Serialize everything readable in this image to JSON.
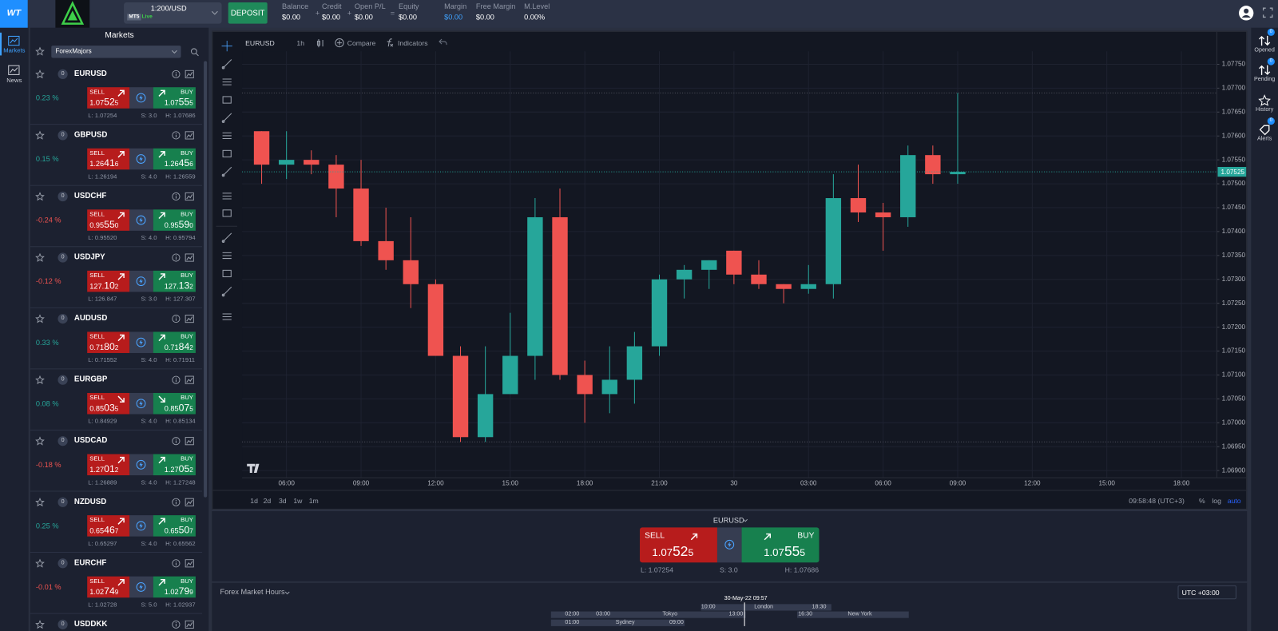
{
  "header": {
    "logo": "WT",
    "account": {
      "leverage": "1:200/USD",
      "platform": "MT5",
      "mode": "Live"
    },
    "deposit": "DEPOSIT",
    "stats": [
      {
        "label": "Balance",
        "value": "$0.00"
      },
      {
        "label": "Credit",
        "value": "$0.00"
      },
      {
        "label": "Open P/L",
        "value": "$0.00"
      },
      {
        "label": "Equity",
        "value": "$0.00"
      },
      {
        "label": "Margin",
        "value": "$0.00"
      },
      {
        "label": "Free Margin",
        "value": "$0.00"
      },
      {
        "label": "M.Level",
        "value": "0.00%"
      }
    ],
    "operators": [
      "+",
      "+",
      "="
    ]
  },
  "nav": {
    "items": [
      "Markets",
      "News"
    ]
  },
  "markets": {
    "title": "Markets",
    "group": "ForexMajors",
    "rows": [
      {
        "symbol": "EURUSD",
        "count": "0",
        "change": "0.23 %",
        "arrow": "up",
        "sell_label": "SELL",
        "sell": [
          "1.07",
          "52",
          "5"
        ],
        "buy_label": "BUY",
        "buy": [
          "1.07",
          "55",
          "5"
        ],
        "low": "L: 1.07254",
        "spread": "S: 3.0",
        "high": "H: 1.07686"
      },
      {
        "symbol": "GBPUSD",
        "count": "0",
        "change": "0.15 %",
        "arrow": "up",
        "sell_label": "SELL",
        "sell": [
          "1.26",
          "41",
          "6"
        ],
        "buy_label": "BUY",
        "buy": [
          "1.26",
          "45",
          "6"
        ],
        "low": "L: 1.26194",
        "spread": "S: 4.0",
        "high": "H: 1.26559"
      },
      {
        "symbol": "USDCHF",
        "count": "0",
        "change": "-0.24 %",
        "arrow": "up",
        "sell_label": "SELL",
        "sell": [
          "0.95",
          "55",
          "0"
        ],
        "buy_label": "BUY",
        "buy": [
          "0.95",
          "59",
          "0"
        ],
        "low": "L: 0.95520",
        "spread": "S: 4.0",
        "high": "H: 0.95794"
      },
      {
        "symbol": "USDJPY",
        "count": "0",
        "change": "-0.12 %",
        "arrow": "up",
        "sell_label": "SELL",
        "sell": [
          "127.",
          "10",
          "2"
        ],
        "buy_label": "BUY",
        "buy": [
          "127.",
          "13",
          "2"
        ],
        "low": "L: 126.847",
        "spread": "S: 3.0",
        "high": "H: 127.307"
      },
      {
        "symbol": "AUDUSD",
        "count": "0",
        "change": "0.33 %",
        "arrow": "up",
        "sell_label": "SELL",
        "sell": [
          "0.71",
          "80",
          "2"
        ],
        "buy_label": "BUY",
        "buy": [
          "0.71",
          "84",
          "2"
        ],
        "low": "L: 0.71552",
        "spread": "S: 4.0",
        "high": "H: 0.71911"
      },
      {
        "symbol": "EURGBP",
        "count": "0",
        "change": "0.08 %",
        "arrow": "down",
        "sell_label": "SELL",
        "sell": [
          "0.85",
          "03",
          "5"
        ],
        "buy_label": "BUY",
        "buy": [
          "0.85",
          "07",
          "5"
        ],
        "low": "L: 0.84929",
        "spread": "S: 4.0",
        "high": "H: 0.85134"
      },
      {
        "symbol": "USDCAD",
        "count": "0",
        "change": "-0.18 %",
        "arrow": "up",
        "sell_label": "SELL",
        "sell": [
          "1.27",
          "01",
          "2"
        ],
        "buy_label": "BUY",
        "buy": [
          "1.27",
          "05",
          "2"
        ],
        "low": "L: 1.26889",
        "spread": "S: 4.0",
        "high": "H: 1.27248"
      },
      {
        "symbol": "NZDUSD",
        "count": "0",
        "change": "0.25 %",
        "arrow": "up",
        "sell_label": "SELL",
        "sell": [
          "0.65",
          "46",
          "7"
        ],
        "buy_label": "BUY",
        "buy": [
          "0.65",
          "50",
          "7"
        ],
        "low": "L: 0.65297",
        "spread": "S: 4.0",
        "high": "H: 0.65562"
      },
      {
        "symbol": "EURCHF",
        "count": "0",
        "change": "-0.01 %",
        "arrow": "up",
        "sell_label": "SELL",
        "sell": [
          "1.02",
          "74",
          "9"
        ],
        "buy_label": "BUY",
        "buy": [
          "1.02",
          "79",
          "9"
        ],
        "low": "L: 1.02728",
        "spread": "S: 5.0",
        "high": "H: 1.02937"
      },
      {
        "symbol": "USDDKK",
        "count": "0"
      }
    ]
  },
  "chart_toolbar": {
    "symbol": "EURUSD",
    "interval": "1h",
    "compare": "Compare",
    "indicators": "Indicators"
  },
  "chart_data": {
    "type": "candlestick",
    "categories": [
      null,
      "06:00",
      null,
      null,
      "09:00",
      null,
      null,
      "12:00",
      null,
      null,
      "15:00",
      null,
      null,
      "18:00",
      null,
      null,
      "21:00",
      null,
      null,
      "30",
      null,
      null,
      "03:00",
      null,
      null,
      "06:00",
      null,
      null,
      "09:00",
      null,
      null,
      "12:00",
      null,
      null,
      "15:00",
      null,
      null,
      "18:00"
    ],
    "open": [
      1.0761,
      1.0754,
      1.0755,
      1.0754,
      1.0749,
      1.0738,
      1.0734,
      1.0729,
      1.0714,
      1.0697,
      1.0706,
      1.0714,
      1.0743,
      1.071,
      1.0706,
      1.0709,
      1.0716,
      1.073,
      1.0732,
      1.0736,
      1.0731,
      1.0729,
      1.0728,
      1.0729,
      1.0747,
      1.0744,
      1.0743,
      1.0756,
      1.0752,
      null,
      null,
      null,
      null,
      null,
      null,
      null,
      null,
      null
    ],
    "high": [
      1.0761,
      1.0761,
      1.0757,
      1.0756,
      1.0755,
      1.0745,
      1.0743,
      1.073,
      1.0716,
      1.0716,
      1.0723,
      1.0747,
      1.0749,
      1.0713,
      1.0716,
      1.0719,
      1.0731,
      1.0733,
      1.0734,
      1.0736,
      1.0734,
      1.0729,
      1.0733,
      1.0752,
      1.0754,
      1.0746,
      1.0758,
      1.0758,
      1.0769,
      null,
      null,
      null,
      null,
      null,
      null,
      null,
      null,
      null
    ],
    "low": [
      1.075,
      1.0751,
      1.0752,
      1.0743,
      1.0737,
      1.0732,
      1.0724,
      1.0714,
      1.0696,
      1.0696,
      1.0706,
      1.0709,
      1.0709,
      1.07,
      1.0702,
      1.0704,
      1.0714,
      1.0726,
      1.0728,
      1.0729,
      1.0728,
      1.0725,
      1.0727,
      1.0726,
      1.0742,
      1.0736,
      1.0741,
      1.075,
      1.075,
      null,
      null,
      null,
      null,
      null,
      null,
      null,
      null,
      null
    ],
    "close": [
      1.0754,
      1.0755,
      1.0754,
      1.0749,
      1.0738,
      1.0734,
      1.0729,
      1.0714,
      1.0697,
      1.0706,
      1.0714,
      1.0743,
      1.071,
      1.0706,
      1.0709,
      1.0716,
      1.073,
      1.0732,
      1.0734,
      1.0731,
      1.0729,
      1.0728,
      1.0729,
      1.0747,
      1.0744,
      1.0743,
      1.0756,
      1.0752,
      1.07525,
      null,
      null,
      null,
      null,
      null,
      null,
      null,
      null,
      null
    ],
    "up_color": "#26a69a",
    "down_color": "#ef5350",
    "grid": true,
    "ylim": [
      1.06885,
      1.07777
    ],
    "yticks": [
      {
        "value": 1.0775,
        "label": "1.07750"
      },
      {
        "value": 1.077,
        "label": "1.07700"
      },
      {
        "value": 1.0765,
        "label": "1.07650"
      },
      {
        "value": 1.076,
        "label": "1.07600"
      },
      {
        "value": 1.0755,
        "label": "1.07550"
      },
      {
        "value": 1.075,
        "label": "1.07500"
      },
      {
        "value": 1.0745,
        "label": "1.07450"
      },
      {
        "value": 1.074,
        "label": "1.07400"
      },
      {
        "value": 1.0735,
        "label": "1.07350"
      },
      {
        "value": 1.073,
        "label": "1.07300"
      },
      {
        "value": 1.0725,
        "label": "1.07250"
      },
      {
        "value": 1.072,
        "label": "1.07200"
      },
      {
        "value": 1.0715,
        "label": "1.07150"
      },
      {
        "value": 1.071,
        "label": "1.07100"
      },
      {
        "value": 1.0705,
        "label": "1.07050"
      },
      {
        "value": 1.07,
        "label": "1.07000"
      },
      {
        "value": 1.0695,
        "label": "1.06950"
      },
      {
        "value": 1.069,
        "label": "1.06900"
      }
    ]
  },
  "chart_footer": {
    "ranges": [
      "1d",
      "2d",
      "3d",
      "1w",
      "1m"
    ],
    "clock": "09:58:48 (UTC+3)",
    "options": [
      "%",
      "log",
      "auto"
    ]
  },
  "trade": {
    "symbol": "EURUSD",
    "arrow": "up",
    "sell_label": "SELL",
    "sell": [
      "1.07",
      "52",
      "5"
    ],
    "buy_label": "BUY",
    "buy": [
      "1.07",
      "55",
      "5"
    ],
    "low": "L: 1.07254",
    "spread": "S: 3.0",
    "high": "H: 1.07686"
  },
  "market_hours": {
    "title": "Forex Market Hours",
    "timezone": "UTC +03:00",
    "now": "30-May-22 09:57",
    "sessions": [
      {
        "name": "London",
        "times": [
          "10:00",
          "18:30"
        ]
      },
      {
        "name": "New York",
        "times": [
          "16:30"
        ]
      },
      {
        "name": "Tokyo",
        "times": [
          "02:00",
          "03:00",
          "13:00"
        ]
      },
      {
        "name": "Sydney",
        "times": [
          "01:00",
          "09:00"
        ]
      }
    ]
  },
  "right_sidebar": {
    "items": [
      {
        "label": "Opened",
        "badge": "0"
      },
      {
        "label": "Pending",
        "badge": "0"
      },
      {
        "label": "History"
      },
      {
        "label": "Alerts",
        "badge": "0"
      }
    ]
  }
}
